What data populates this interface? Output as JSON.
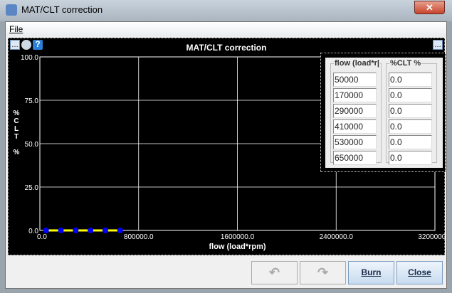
{
  "window": {
    "title": "MAT/CLT correction",
    "close_label": "✕"
  },
  "menu": {
    "file": "File"
  },
  "toolbar": {
    "menu_icon": "…",
    "edit_icon": "brush-icon",
    "help_icon": "?",
    "corner_menu": "…"
  },
  "chart_data": {
    "type": "line",
    "title": "MAT/CLT correction",
    "xlabel": "flow (load*rpm)",
    "ylabel": "%CLT %",
    "xlim": [
      0,
      3200000
    ],
    "ylim": [
      0,
      100
    ],
    "xticks": [
      "0.0",
      "800000.0",
      "1600000.0",
      "2400000.0",
      "3200000.0"
    ],
    "yticks": [
      "0.0",
      "25.0",
      "50.0",
      "75.0",
      "100.0"
    ],
    "grid": true,
    "x": [
      50000,
      170000,
      290000,
      410000,
      530000,
      650000
    ],
    "y": [
      0,
      0,
      0,
      0,
      0,
      0
    ],
    "line_color": "#ffff00",
    "point_color": "#0000ff"
  },
  "table": {
    "headers": [
      "flow (load*rpm)",
      "%CLT %"
    ],
    "header_display": [
      "flow (load*r|",
      "%CLT %"
    ],
    "flow": [
      "50000",
      "170000",
      "290000",
      "410000",
      "530000",
      "650000"
    ],
    "clt": [
      "0.0",
      "0.0",
      "0.0",
      "0.0",
      "0.0",
      "0.0"
    ]
  },
  "buttons": {
    "undo": "↶",
    "redo": "↷",
    "burn": "Burn",
    "close": "Close"
  }
}
